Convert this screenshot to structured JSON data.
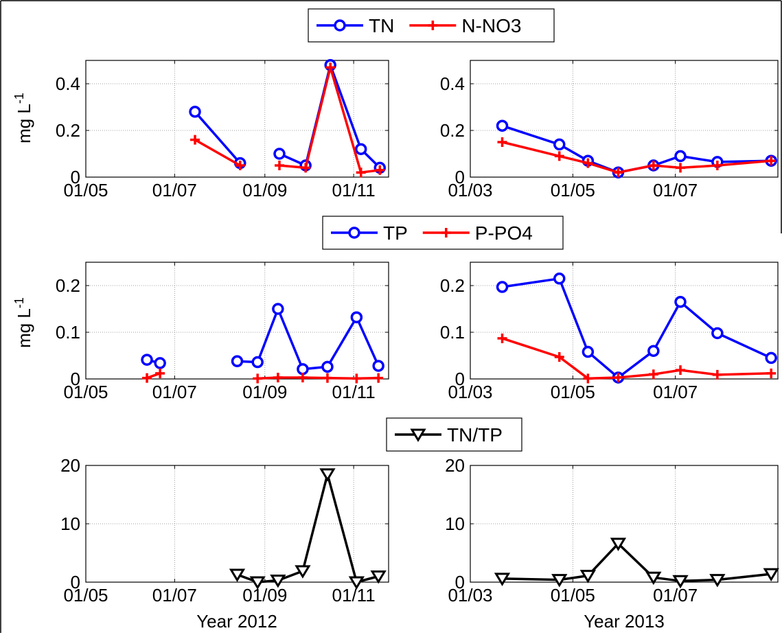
{
  "legends": [
    {
      "entries": [
        {
          "label": "TN",
          "color": "#0000ff",
          "marker": "circle"
        },
        {
          "label": "N-NO3",
          "color": "#ff0000",
          "marker": "plus"
        }
      ]
    },
    {
      "entries": [
        {
          "label": "TP",
          "color": "#0000ff",
          "marker": "circle"
        },
        {
          "label": "P-PO4",
          "color": "#ff0000",
          "marker": "plus"
        }
      ]
    },
    {
      "entries": [
        {
          "label": "TN/TP",
          "color": "#000000",
          "marker": "triangle-down"
        }
      ]
    }
  ],
  "ylabel": {
    "text": "mg L",
    "superscript": "-1"
  },
  "xlabels": {
    "2012": "Year 2012",
    "2013": "Year 2013"
  },
  "chart_data": [
    {
      "id": "tn-2012",
      "type": "line",
      "ylabel": "mg L-1",
      "xlabel": "",
      "xlim": [
        "2012-05-01",
        "2012-11-25"
      ],
      "ylim": [
        0,
        0.5
      ],
      "xticks": [
        "2012-05-01",
        "2012-07-01",
        "2012-09-01",
        "2012-11-01"
      ],
      "xticklabels": [
        "01/05",
        "01/07",
        "01/09",
        "01/11"
      ],
      "yticks": [
        0,
        0.2,
        0.4
      ],
      "yticklabels": [
        "0",
        "0.2",
        "0.4"
      ],
      "grid": true,
      "series": [
        {
          "name": "TN",
          "color": "#0000ff",
          "marker": "circle",
          "segments": [
            [
              [
                "2012-07-15",
                0.28
              ],
              [
                "2012-08-15",
                0.06
              ]
            ],
            [
              [
                "2012-09-11",
                0.1
              ],
              [
                "2012-09-29",
                0.05
              ],
              [
                "2012-10-16",
                0.48
              ],
              [
                "2012-11-06",
                0.12
              ],
              [
                "2012-11-19",
                0.04
              ]
            ]
          ]
        },
        {
          "name": "N-NO3",
          "color": "#ff0000",
          "marker": "plus",
          "segments": [
            [
              [
                "2012-07-15",
                0.16
              ],
              [
                "2012-08-15",
                0.05
              ]
            ],
            [
              [
                "2012-09-11",
                0.05
              ],
              [
                "2012-09-29",
                0.04
              ],
              [
                "2012-10-16",
                0.47
              ],
              [
                "2012-11-06",
                0.02
              ],
              [
                "2012-11-19",
                0.03
              ]
            ]
          ]
        }
      ]
    },
    {
      "id": "tn-2013",
      "type": "line",
      "ylabel": "",
      "xlabel": "",
      "xlim": [
        "2013-03-01",
        "2013-08-31"
      ],
      "ylim": [
        0,
        0.5
      ],
      "xticks": [
        "2013-03-01",
        "2013-05-01",
        "2013-07-01"
      ],
      "xticklabels": [
        "01/03",
        "01/05",
        "01/07"
      ],
      "yticks": [
        0,
        0.2,
        0.4
      ],
      "yticklabels": [
        "0",
        "0.2",
        "0.4"
      ],
      "grid": true,
      "series": [
        {
          "name": "TN",
          "color": "#0000ff",
          "marker": "circle",
          "segments": [
            [
              [
                "2013-03-20",
                0.22
              ],
              [
                "2013-04-23",
                0.14
              ],
              [
                "2013-05-10",
                0.07
              ],
              [
                "2013-05-28",
                0.02
              ],
              [
                "2013-06-18",
                0.05
              ],
              [
                "2013-07-04",
                0.09
              ],
              [
                "2013-07-26",
                0.065
              ],
              [
                "2013-08-27",
                0.07
              ]
            ]
          ]
        },
        {
          "name": "N-NO3",
          "color": "#ff0000",
          "marker": "plus",
          "segments": [
            [
              [
                "2013-03-20",
                0.15
              ],
              [
                "2013-04-23",
                0.09
              ],
              [
                "2013-05-10",
                0.06
              ],
              [
                "2013-05-28",
                0.02
              ],
              [
                "2013-06-18",
                0.05
              ],
              [
                "2013-07-04",
                0.04
              ],
              [
                "2013-07-26",
                0.05
              ],
              [
                "2013-08-27",
                0.07
              ]
            ]
          ]
        }
      ]
    },
    {
      "id": "tp-2012",
      "type": "line",
      "ylabel": "mg L-1",
      "xlabel": "",
      "xlim": [
        "2012-05-01",
        "2012-11-25"
      ],
      "ylim": [
        0,
        0.25
      ],
      "xticks": [
        "2012-05-01",
        "2012-07-01",
        "2012-09-01",
        "2012-11-01"
      ],
      "xticklabels": [
        "01/05",
        "01/07",
        "01/09",
        "01/11"
      ],
      "yticks": [
        0,
        0.1,
        0.2
      ],
      "yticklabels": [
        "0",
        "0.1",
        "0.2"
      ],
      "grid": true,
      "series": [
        {
          "name": "TP",
          "color": "#0000ff",
          "marker": "circle",
          "segments": [
            [
              [
                "2012-06-12",
                0.041
              ],
              [
                "2012-06-21",
                0.034
              ]
            ],
            [
              [
                "2012-08-13",
                0.038
              ],
              [
                "2012-08-27",
                0.036
              ],
              [
                "2012-09-10",
                0.15
              ],
              [
                "2012-09-27",
                0.021
              ],
              [
                "2012-10-14",
                0.026
              ],
              [
                "2012-11-03",
                0.132
              ],
              [
                "2012-11-18",
                0.028
              ]
            ]
          ]
        },
        {
          "name": "P-PO4",
          "color": "#ff0000",
          "marker": "plus",
          "segments": [
            [
              [
                "2012-06-12",
                0.002
              ],
              [
                "2012-06-21",
                0.012
              ]
            ],
            [
              [
                "2012-08-27",
                0.001
              ],
              [
                "2012-09-10",
                0.003
              ],
              [
                "2012-09-27",
                0.003
              ],
              [
                "2012-10-14",
                0.002
              ],
              [
                "2012-11-03",
                0.001
              ],
              [
                "2012-11-18",
                0.002
              ]
            ]
          ]
        }
      ]
    },
    {
      "id": "tp-2013",
      "type": "line",
      "ylabel": "",
      "xlabel": "",
      "xlim": [
        "2013-03-01",
        "2013-08-31"
      ],
      "ylim": [
        0,
        0.25
      ],
      "xticks": [
        "2013-03-01",
        "2013-05-01",
        "2013-07-01"
      ],
      "xticklabels": [
        "01/03",
        "01/05",
        "01/07"
      ],
      "yticks": [
        0,
        0.1,
        0.2
      ],
      "yticklabels": [
        "0",
        "0.1",
        "0.2"
      ],
      "grid": true,
      "series": [
        {
          "name": "TP",
          "color": "#0000ff",
          "marker": "circle",
          "segments": [
            [
              [
                "2013-03-20",
                0.197
              ],
              [
                "2013-04-23",
                0.215
              ],
              [
                "2013-05-10",
                0.058
              ],
              [
                "2013-05-28",
                0.003
              ],
              [
                "2013-06-18",
                0.06
              ],
              [
                "2013-07-04",
                0.165
              ],
              [
                "2013-07-26",
                0.098
              ],
              [
                "2013-08-27",
                0.045
              ]
            ]
          ]
        },
        {
          "name": "P-PO4",
          "color": "#ff0000",
          "marker": "plus",
          "segments": [
            [
              [
                "2013-03-20",
                0.087
              ],
              [
                "2013-04-23",
                0.047
              ],
              [
                "2013-05-10",
                0.001
              ],
              [
                "2013-05-28",
                0.003
              ],
              [
                "2013-06-18",
                0.01
              ],
              [
                "2013-07-04",
                0.019
              ],
              [
                "2013-07-26",
                0.009
              ],
              [
                "2013-08-27",
                0.012
              ]
            ]
          ]
        }
      ]
    },
    {
      "id": "ratio-2012",
      "type": "line",
      "ylabel": "",
      "xlabel": "Year 2012",
      "xlim": [
        "2012-05-01",
        "2012-11-25"
      ],
      "ylim": [
        0,
        20
      ],
      "xticks": [
        "2012-05-01",
        "2012-07-01",
        "2012-09-01",
        "2012-11-01"
      ],
      "xticklabels": [
        "01/05",
        "01/07",
        "01/09",
        "01/11"
      ],
      "yticks": [
        0,
        10,
        20
      ],
      "yticklabels": [
        "0",
        "10",
        "20"
      ],
      "grid": true,
      "series": [
        {
          "name": "TN/TP",
          "color": "#000000",
          "marker": "triangle-down",
          "segments": [
            [
              [
                "2012-08-13",
                1.3
              ],
              [
                "2012-08-27",
                0.0
              ],
              [
                "2012-09-10",
                0.3
              ],
              [
                "2012-09-27",
                1.9
              ],
              [
                "2012-10-14",
                18.5
              ],
              [
                "2012-11-03",
                0.0
              ],
              [
                "2012-11-18",
                1.0
              ]
            ]
          ]
        }
      ]
    },
    {
      "id": "ratio-2013",
      "type": "line",
      "ylabel": "",
      "xlabel": "Year 2013",
      "xlim": [
        "2013-03-01",
        "2013-08-31"
      ],
      "ylim": [
        0,
        20
      ],
      "xticks": [
        "2013-03-01",
        "2013-05-01",
        "2013-07-01"
      ],
      "xticklabels": [
        "01/03",
        "01/05",
        "01/07"
      ],
      "yticks": [
        0,
        10,
        20
      ],
      "yticklabels": [
        "0",
        "10",
        "20"
      ],
      "grid": true,
      "series": [
        {
          "name": "TN/TP",
          "color": "#000000",
          "marker": "triangle-down",
          "segments": [
            [
              [
                "2013-03-20",
                0.6
              ],
              [
                "2013-04-23",
                0.4
              ],
              [
                "2013-05-10",
                1.1
              ],
              [
                "2013-05-28",
                6.6
              ],
              [
                "2013-06-18",
                0.8
              ],
              [
                "2013-07-04",
                0.2
              ],
              [
                "2013-07-26",
                0.4
              ],
              [
                "2013-08-27",
                1.4
              ]
            ]
          ]
        }
      ]
    }
  ]
}
